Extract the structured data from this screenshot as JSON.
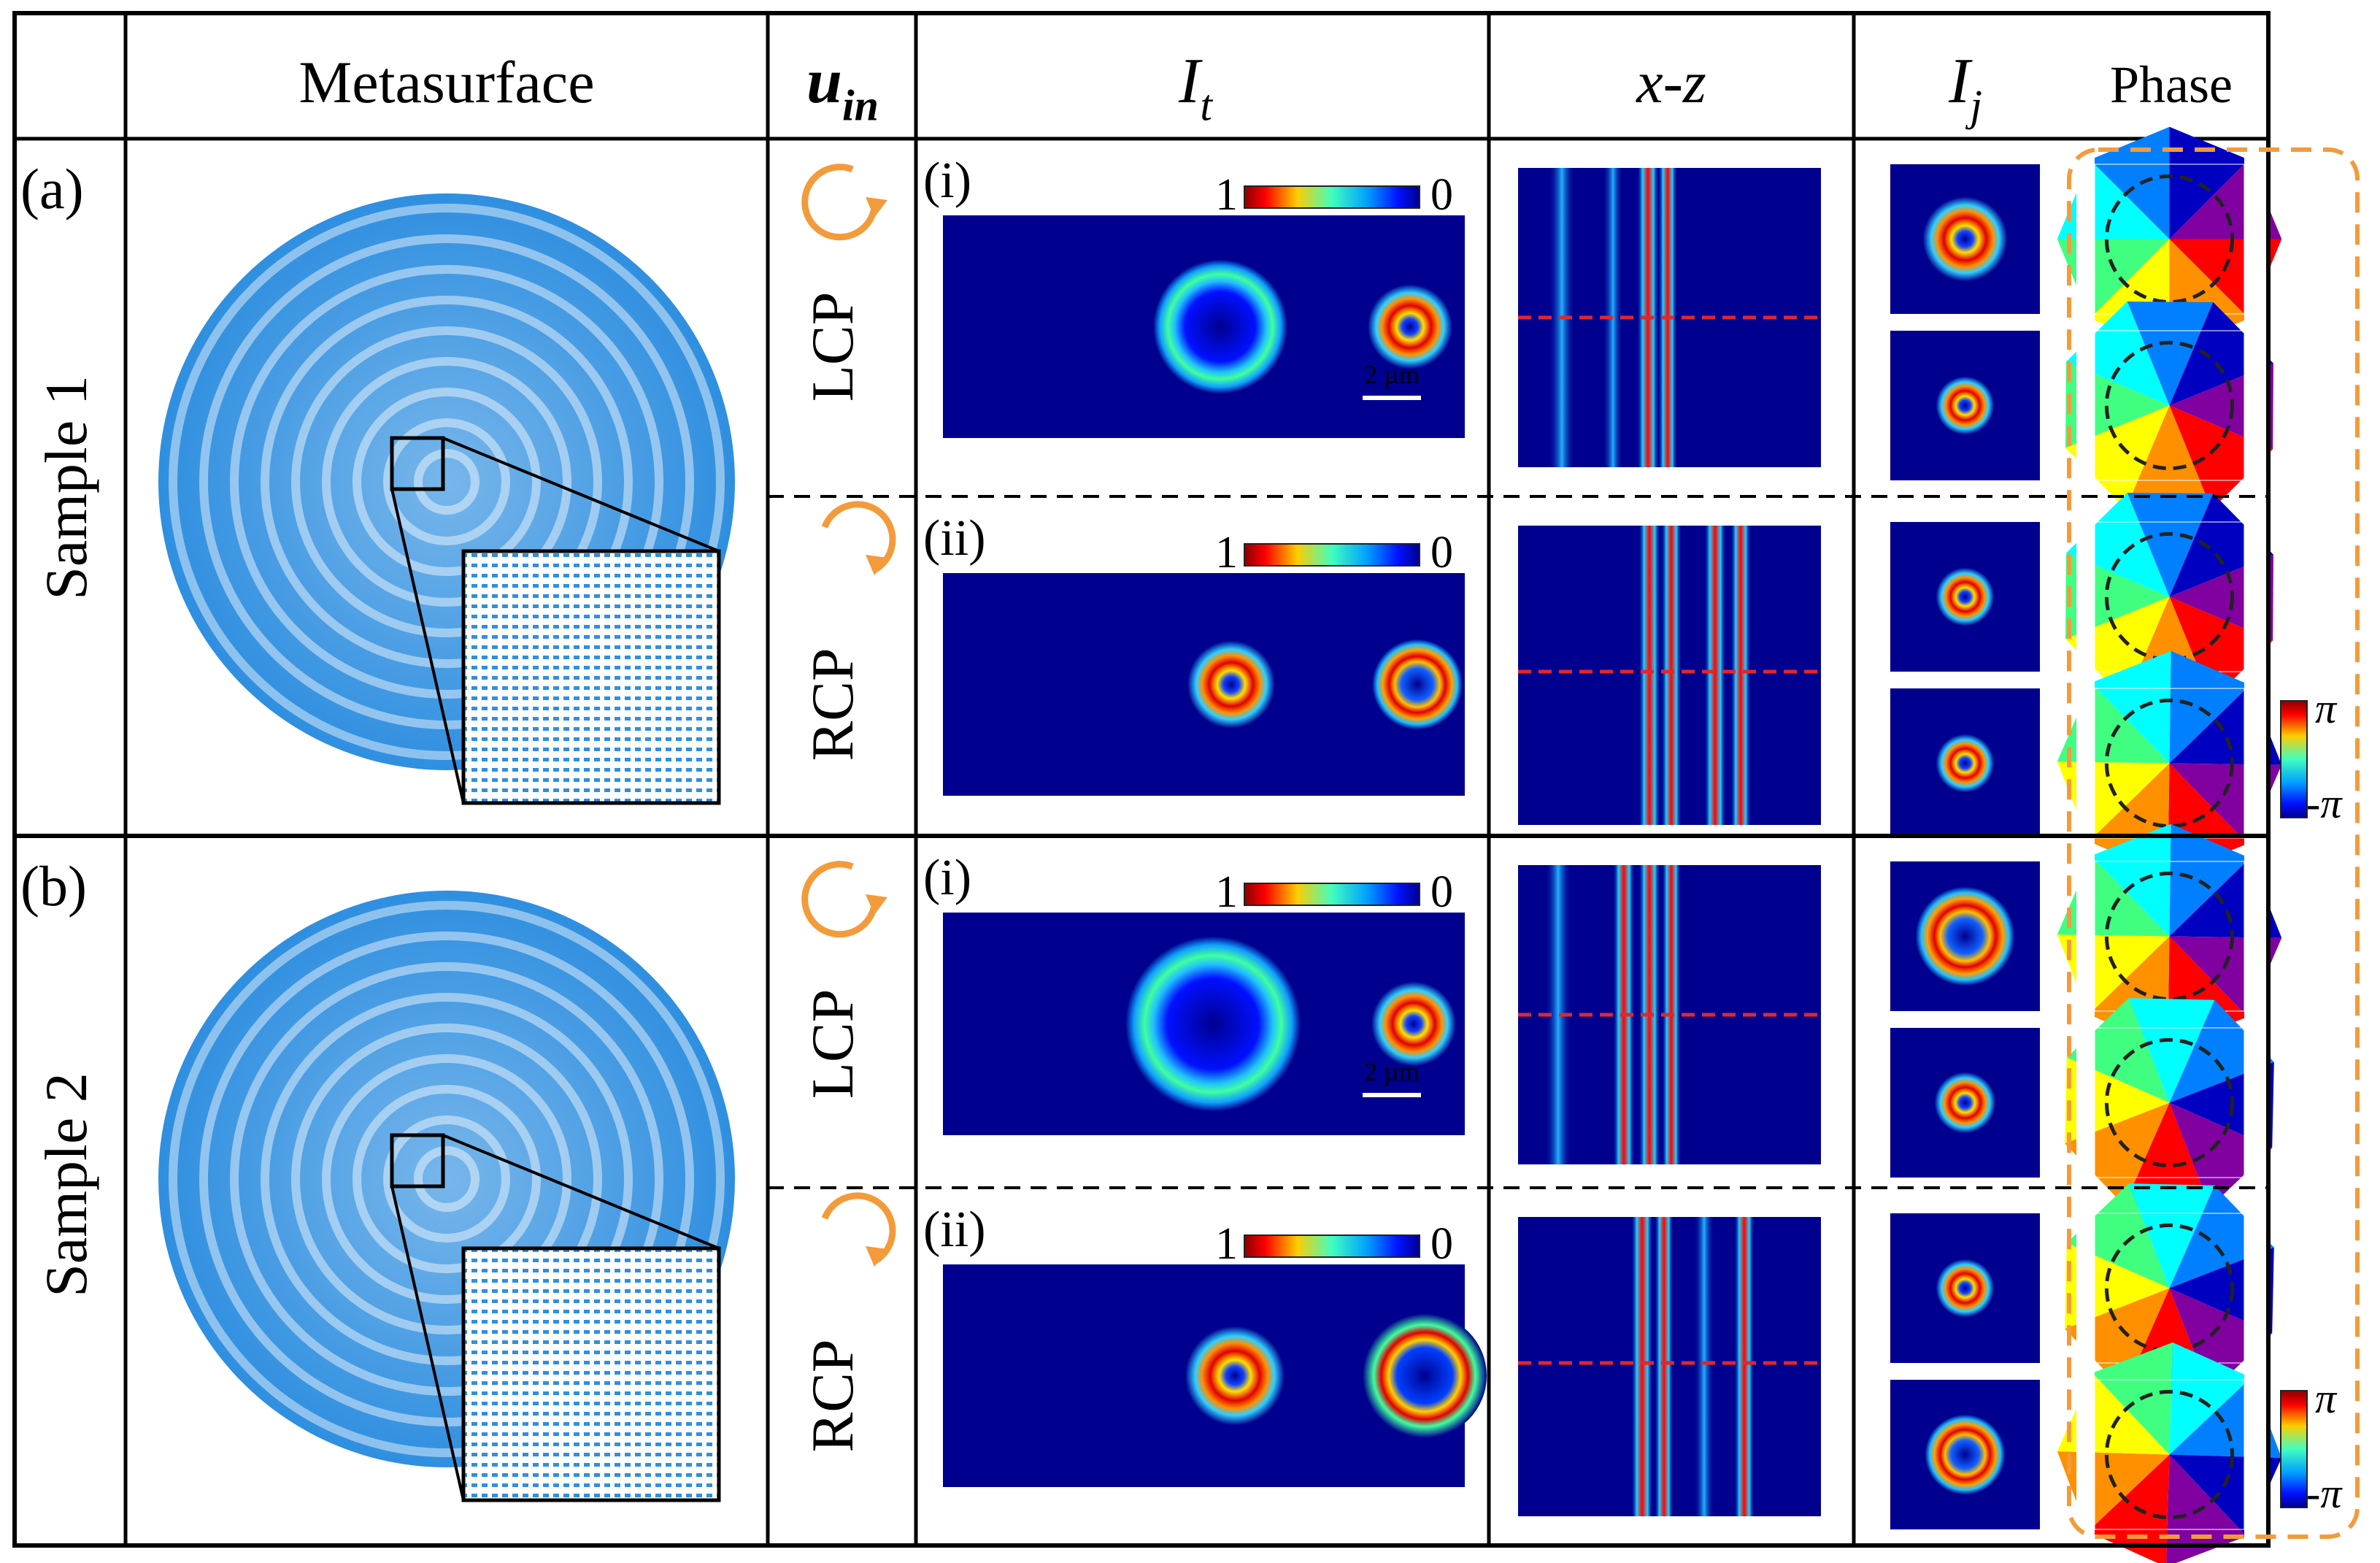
{
  "header": {
    "metasurface": "Metasurface",
    "u_in_base": "u",
    "u_in_sub": "in",
    "It_base": "I",
    "It_sub": "t",
    "xz": "x-z",
    "Ij_base": "I",
    "Ij_sub": "j",
    "phase": "Phase"
  },
  "rows": [
    {
      "tag": "(a)",
      "sample": "Sample 1"
    },
    {
      "tag": "(b)",
      "sample": "Sample 2"
    }
  ],
  "panels": [
    {
      "label": "(i)",
      "polarization": "LCP",
      "scale_bar": "2 µm",
      "cb_max": "1",
      "cb_min": "0"
    },
    {
      "label": "(ii)",
      "polarization": "RCP",
      "cb_max": "1",
      "cb_min": "0"
    },
    {
      "label": "(i)",
      "polarization": "LCP",
      "scale_bar": "2 µm",
      "cb_max": "1",
      "cb_min": "0"
    },
    {
      "label": "(ii)",
      "polarization": "RCP",
      "cb_max": "1",
      "cb_min": "0"
    }
  ],
  "phase_colorbars": [
    {
      "max": "π",
      "min": "-π"
    },
    {
      "max": "π",
      "min": "-π"
    }
  ],
  "colors": {
    "meta_blue": "#2f8fe0",
    "field_bg": "#00008f",
    "arrow_orange": "#f39b3b",
    "dash_red": "#e3262b",
    "box_orange": "#f39b3b"
  }
}
